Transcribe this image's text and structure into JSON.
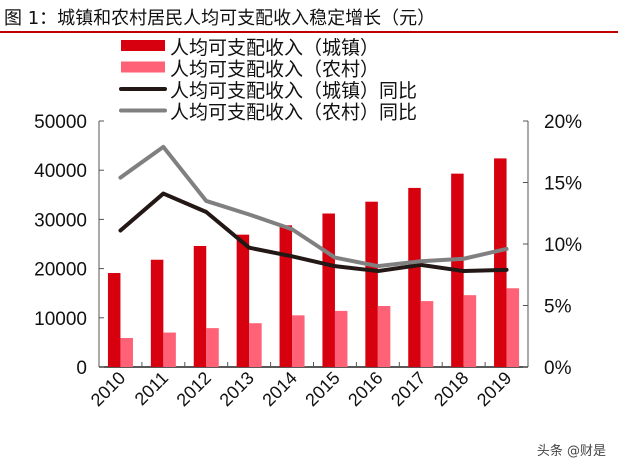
{
  "title": "图 1：城镇和农村居民人均可支配收入稳定增长（元）",
  "watermark": "头条 @财是",
  "chart_data": {
    "type": "bar+line",
    "title": "图 1：城镇和农村居民人均可支配收入稳定增长（元）",
    "categories": [
      "2010",
      "2011",
      "2012",
      "2013",
      "2014",
      "2015",
      "2016",
      "2017",
      "2018",
      "2019"
    ],
    "y_left": {
      "range": [
        0,
        50000
      ],
      "ticks": [
        "0",
        "10000",
        "20000",
        "30000",
        "40000",
        "50000"
      ]
    },
    "y_right": {
      "range": [
        0,
        20
      ],
      "unit": "%",
      "ticks": [
        "0%",
        "5%",
        "10%",
        "15%",
        "20%"
      ]
    },
    "legend_position": "top",
    "grid": false,
    "series": [
      {
        "name": "人均可支配收入（城镇）",
        "type": "bar",
        "axis": "left",
        "color": "#d7000f",
        "values": [
          19100,
          21800,
          24600,
          26900,
          28800,
          31200,
          33600,
          36400,
          39300,
          42400
        ]
      },
      {
        "name": "人均可支配收入（农村）",
        "type": "bar",
        "axis": "left",
        "color": "#ff6176",
        "values": [
          5900,
          7000,
          7900,
          8900,
          10500,
          11400,
          12400,
          13400,
          14600,
          16000
        ]
      },
      {
        "name": "人均可支配收入（城镇）同比",
        "type": "line",
        "axis": "right",
        "color": "#231815",
        "values": [
          11.1,
          14.1,
          12.6,
          9.7,
          9.0,
          8.2,
          7.8,
          8.3,
          7.8,
          7.9
        ]
      },
      {
        "name": "人均可支配收入（农村）同比",
        "type": "line",
        "axis": "right",
        "color": "#808080",
        "values": [
          15.4,
          17.9,
          13.5,
          12.4,
          11.2,
          8.9,
          8.2,
          8.6,
          8.8,
          9.6
        ]
      }
    ]
  }
}
